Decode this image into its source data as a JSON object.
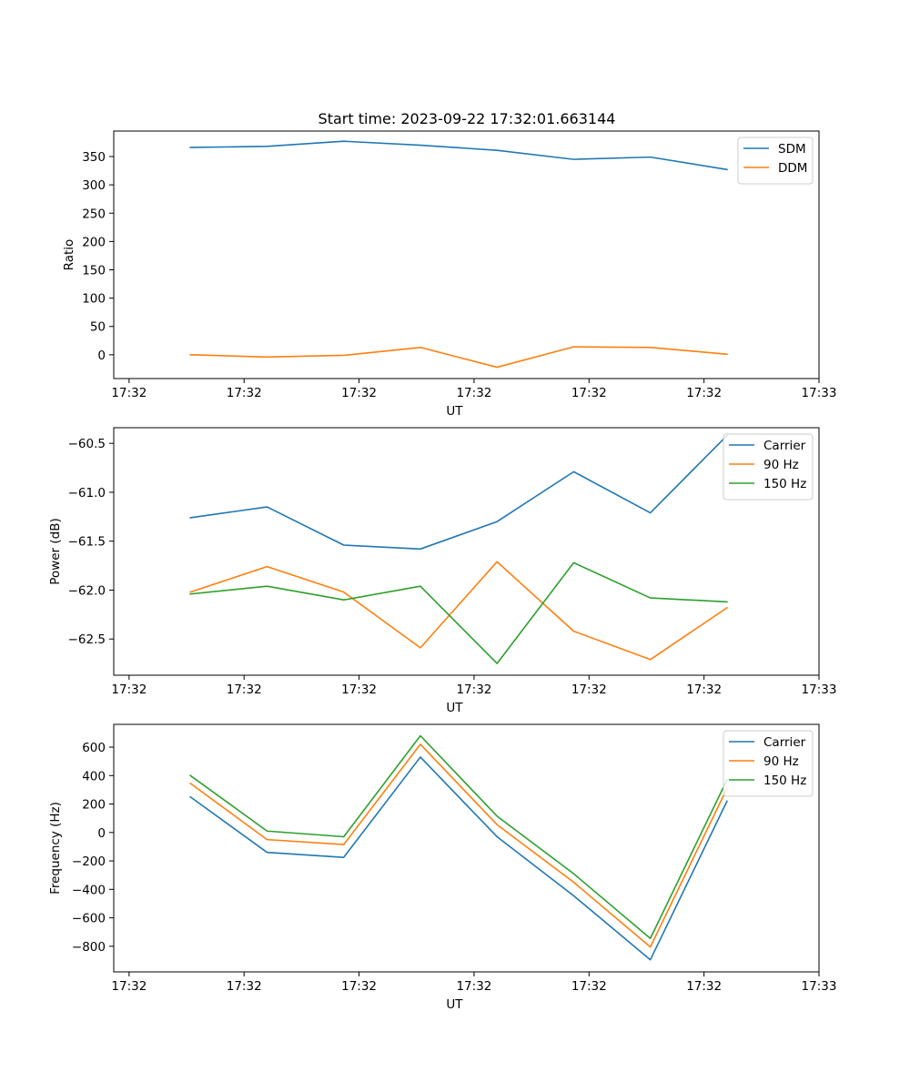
{
  "figure": {
    "title": "Start time: 2023-09-22 17:32:01.663144"
  },
  "colors": {
    "blue": "#1f77b4",
    "orange": "#ff7f0e",
    "green": "#2ca02c"
  },
  "chart_data": [
    {
      "type": "line",
      "title": "Start time: 2023-09-22 17:32:01.663144",
      "xlabel": "UT",
      "ylabel": "Ratio",
      "xlim": [
        0,
        9.2
      ],
      "ylim": [
        -42,
        395
      ],
      "x_ticks": [
        0.2,
        1.7,
        3.2,
        4.7,
        6.2,
        7.7,
        9.2
      ],
      "x_tick_labels": [
        "17:32",
        "17:32",
        "17:32",
        "17:32",
        "17:32",
        "17:32",
        "17:33"
      ],
      "y_ticks": [
        0,
        50,
        100,
        150,
        200,
        250,
        300,
        350
      ],
      "y_tick_labels": [
        "0",
        "50",
        "100",
        "150",
        "200",
        "250",
        "300",
        "350"
      ],
      "legend_position": "top-right",
      "x": [
        1,
        2,
        3,
        4,
        5,
        6,
        7,
        8
      ],
      "series": [
        {
          "name": "SDM",
          "color": "#1f77b4",
          "values": [
            366,
            368,
            377,
            370,
            361,
            345,
            349,
            327
          ]
        },
        {
          "name": "DDM",
          "color": "#ff7f0e",
          "values": [
            0,
            -4,
            -1,
            13,
            -22,
            14,
            13,
            1
          ]
        }
      ]
    },
    {
      "type": "line",
      "title": "",
      "xlabel": "UT",
      "ylabel": "Power (dB)",
      "xlim": [
        0,
        9.2
      ],
      "ylim": [
        -62.87,
        -60.34
      ],
      "x_ticks": [
        0.2,
        1.7,
        3.2,
        4.7,
        6.2,
        7.7,
        9.2
      ],
      "x_tick_labels": [
        "17:32",
        "17:32",
        "17:32",
        "17:32",
        "17:32",
        "17:32",
        "17:33"
      ],
      "y_ticks": [
        -62.5,
        -62.0,
        -61.5,
        -61.0,
        -60.5
      ],
      "y_tick_labels": [
        "−62.5",
        "−62.0",
        "−61.5",
        "−61.0",
        "−60.5"
      ],
      "legend_position": "top-right",
      "x": [
        1,
        2,
        3,
        4,
        5,
        6,
        7,
        8
      ],
      "series": [
        {
          "name": "Carrier",
          "color": "#1f77b4",
          "values": [
            -61.26,
            -61.15,
            -61.54,
            -61.58,
            -61.3,
            -60.79,
            -61.21,
            -60.42
          ]
        },
        {
          "name": "90 Hz",
          "color": "#ff7f0e",
          "values": [
            -62.02,
            -61.76,
            -62.02,
            -62.59,
            -61.71,
            -62.42,
            -62.71,
            -62.18
          ]
        },
        {
          "name": "150 Hz",
          "color": "#2ca02c",
          "values": [
            -62.04,
            -61.96,
            -62.1,
            -61.96,
            -62.75,
            -61.72,
            -62.08,
            -62.12
          ]
        }
      ]
    },
    {
      "type": "line",
      "title": "",
      "xlabel": "UT",
      "ylabel": "Frequency (Hz)",
      "xlim": [
        0,
        9.2
      ],
      "ylim": [
        -980,
        760
      ],
      "x_ticks": [
        0.2,
        1.7,
        3.2,
        4.7,
        6.2,
        7.7,
        9.2
      ],
      "x_tick_labels": [
        "17:32",
        "17:32",
        "17:32",
        "17:32",
        "17:32",
        "17:32",
        "17:33"
      ],
      "y_ticks": [
        -800,
        -600,
        -400,
        -200,
        0,
        200,
        400,
        600
      ],
      "y_tick_labels": [
        "−800",
        "−600",
        "−400",
        "−200",
        "0",
        "200",
        "400",
        "600"
      ],
      "legend_position": "top-right",
      "x": [
        1,
        2,
        3,
        4,
        5,
        6,
        7,
        8
      ],
      "series": [
        {
          "name": "Carrier",
          "color": "#1f77b4",
          "values": [
            250,
            -140,
            -175,
            530,
            -30,
            -445,
            -895,
            220
          ]
        },
        {
          "name": "90 Hz",
          "color": "#ff7f0e",
          "values": [
            345,
            -50,
            -85,
            620,
            55,
            -350,
            -805,
            310
          ]
        },
        {
          "name": "150 Hz",
          "color": "#2ca02c",
          "values": [
            400,
            10,
            -30,
            680,
            115,
            -290,
            -745,
            370
          ]
        }
      ]
    }
  ]
}
